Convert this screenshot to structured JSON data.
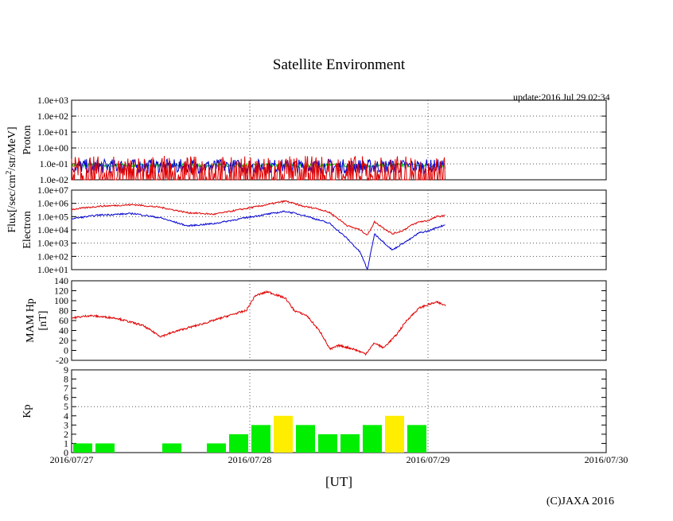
{
  "title": "Satellite Environment",
  "update_text": "update:2016 Jul 29 02:34",
  "xlabel": "[UT]",
  "copyright": "(C)JAXA 2016",
  "x_ticks": [
    "2016/07/27",
    "2016/07/28",
    "2016/07/29",
    "2016/07/30"
  ],
  "shared_ylabel": {
    "main": "Flux[/sec/cm",
    "sup": "2",
    "rest": "/str/MeV]"
  },
  "colors": {
    "red": "#e00000",
    "blue": "#0000d0",
    "green": "#00d000",
    "kp_green": "#00ee00",
    "kp_yellow": "#ffee00",
    "grid": "#555555"
  },
  "chart_data": [
    {
      "type": "line",
      "panel": "proton",
      "ylabel": "Proton",
      "yscale": "log",
      "ylim": [
        0.01,
        1000
      ],
      "y_ticks": [
        "1.0e-02",
        "1.0e-01",
        "1.0e+00",
        "1.0e+01",
        "1.0e+02",
        "1.0e+03"
      ],
      "xlim_days": [
        0,
        3
      ],
      "series": [
        {
          "name": "green",
          "color": "green",
          "x": [
            0,
            2.1
          ],
          "y": [
            0.08,
            0.08
          ]
        },
        {
          "name": "blue",
          "color": "blue",
          "x": [
            0,
            2.1
          ],
          "y": [
            0.07,
            0.07
          ]
        },
        {
          "name": "red",
          "color": "red",
          "x": [
            0,
            2.1
          ],
          "y": [
            0.04,
            0.04
          ]
        }
      ]
    },
    {
      "type": "line",
      "panel": "electron",
      "ylabel": "Electron",
      "yscale": "log",
      "ylim": [
        10,
        10000000
      ],
      "y_ticks": [
        "1.0e+01",
        "1.0e+02",
        "1.0e+03",
        "1.0e+04",
        "1.0e+05",
        "1.0e+06",
        "1.0e+07"
      ],
      "xlim_days": [
        0,
        3
      ],
      "series": [
        {
          "name": "red",
          "color": "red",
          "x": [
            0,
            0.15,
            0.35,
            0.5,
            0.65,
            0.8,
            0.95,
            1.05,
            1.2,
            1.3,
            1.38,
            1.45,
            1.55,
            1.62,
            1.66,
            1.7,
            1.8,
            1.86,
            1.9,
            1.95,
            2.0,
            2.05,
            2.1
          ],
          "y": [
            350000,
            600000,
            800000,
            500000,
            200000,
            150000,
            350000,
            600000,
            1500000,
            600000,
            400000,
            200000,
            20000,
            10000,
            4000,
            40000,
            5000,
            9000,
            20000,
            40000,
            50000,
            100000,
            120000
          ]
        },
        {
          "name": "blue",
          "color": "blue",
          "x": [
            0,
            0.15,
            0.35,
            0.5,
            0.65,
            0.8,
            0.95,
            1.05,
            1.2,
            1.3,
            1.38,
            1.45,
            1.55,
            1.62,
            1.66,
            1.7,
            1.8,
            1.86,
            1.9,
            1.95,
            2.0,
            2.05,
            2.1
          ],
          "y": [
            70000,
            130000,
            170000,
            80000,
            20000,
            30000,
            70000,
            120000,
            250000,
            130000,
            60000,
            30000,
            2000,
            200,
            10,
            5000,
            300,
            1000,
            2000,
            6000,
            8000,
            15000,
            25000
          ]
        }
      ]
    },
    {
      "type": "line",
      "panel": "mam_hp",
      "ylabel": "MAM Hp",
      "ylabel2": "[nT]",
      "ylim": [
        -20,
        140
      ],
      "y_ticks": [
        "-20",
        "0",
        "20",
        "40",
        "60",
        "80",
        "100",
        "120",
        "140"
      ],
      "xlim_days": [
        0,
        3
      ],
      "series": [
        {
          "name": "red",
          "color": "red",
          "x": [
            0,
            0.1,
            0.25,
            0.4,
            0.5,
            0.6,
            0.75,
            0.9,
            0.98,
            1.03,
            1.1,
            1.2,
            1.25,
            1.32,
            1.4,
            1.45,
            1.5,
            1.58,
            1.65,
            1.7,
            1.75,
            1.82,
            1.88,
            1.95,
            2.0,
            2.05,
            2.1
          ],
          "y": [
            65,
            70,
            65,
            50,
            28,
            40,
            55,
            72,
            80,
            110,
            118,
            105,
            80,
            70,
            35,
            2,
            10,
            3,
            -7,
            15,
            5,
            30,
            60,
            85,
            92,
            97,
            90
          ]
        }
      ]
    },
    {
      "type": "bar",
      "panel": "kp",
      "ylabel": "Kp",
      "ylim": [
        0,
        9
      ],
      "y_ticks": [
        "0",
        "1",
        "2",
        "3",
        "4",
        "5",
        "6",
        "7",
        "8",
        "9"
      ],
      "xlim_days": [
        0,
        3
      ],
      "threshold": 5,
      "bin_width_days": 0.125,
      "bin_start_days": [
        0,
        0.125,
        0.5,
        0.75,
        0.875,
        1.0,
        1.125,
        1.25,
        1.375,
        1.5,
        1.625,
        1.75,
        1.875,
        2.0
      ],
      "values": [
        1,
        1,
        1,
        1,
        2,
        3,
        4,
        3,
        2,
        2,
        3,
        4,
        3,
        0
      ],
      "bar_colors": [
        "kp_green",
        "kp_green",
        "kp_green",
        "kp_green",
        "kp_green",
        "kp_green",
        "kp_yellow",
        "kp_green",
        "kp_green",
        "kp_green",
        "kp_green",
        "kp_yellow",
        "kp_green",
        "kp_green"
      ]
    }
  ]
}
